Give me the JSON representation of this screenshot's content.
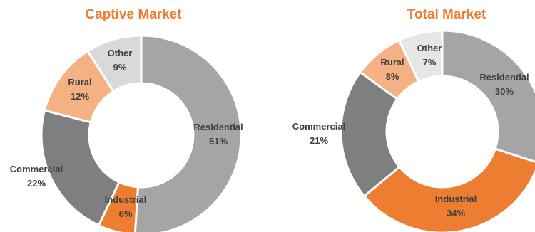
{
  "colors": {
    "title": "#ED7D31",
    "label": "#404040",
    "separator": "#ffffff"
  },
  "chart_data": [
    {
      "type": "pie",
      "title": "Captive Market",
      "slices": [
        {
          "label": "Residential",
          "value": 51,
          "value_label": "51%",
          "color": "#A5A5A5"
        },
        {
          "label": "Industrial",
          "value": 6,
          "value_label": "6%",
          "color": "#ED7D31"
        },
        {
          "label": "Commercial",
          "value": 22,
          "value_label": "22%",
          "color": "#7F7F7F"
        },
        {
          "label": "Rural",
          "value": 12,
          "value_label": "12%",
          "color": "#F4B183"
        },
        {
          "label": "Other",
          "value": 9,
          "value_label": "9%",
          "color": "#D9D9D9"
        }
      ]
    },
    {
      "type": "pie",
      "title": "Total Market",
      "slices": [
        {
          "label": "Residential",
          "value": 30,
          "value_label": "30%",
          "color": "#A5A5A5"
        },
        {
          "label": "Industrial",
          "value": 34,
          "value_label": "34%",
          "color": "#ED7D31"
        },
        {
          "label": "Commercial",
          "value": 21,
          "value_label": "21%",
          "color": "#7F7F7F"
        },
        {
          "label": "Rural",
          "value": 8,
          "value_label": "8%",
          "color": "#F4B183"
        },
        {
          "label": "Other",
          "value": 7,
          "value_label": "7%",
          "color": "#E7E6E6"
        }
      ]
    }
  ]
}
